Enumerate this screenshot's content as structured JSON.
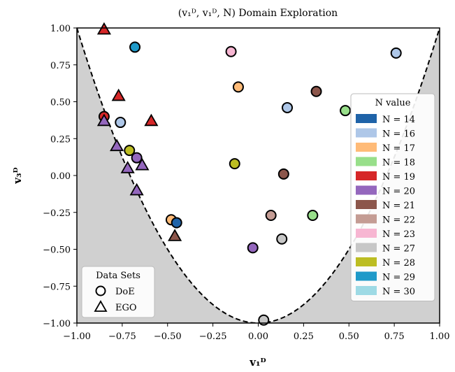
{
  "chart_data": {
    "type": "scatter",
    "title": "(v₁ᴰ, v₁ᴰ, N) Domain Exploration",
    "xlabel": "v₁ᴰ",
    "ylabel": "v₃ᴰ",
    "xlim": [
      -1.0,
      1.0
    ],
    "ylim": [
      -1.0,
      1.0
    ],
    "x_ticks": [
      "−1.00",
      "−0.75",
      "−0.50",
      "−0.25",
      "0.00",
      "0.25",
      "0.50",
      "0.75",
      "1.00"
    ],
    "y_ticks": [
      "1.00",
      "0.75",
      "0.50",
      "0.25",
      "0.00",
      "−0.25",
      "−0.50",
      "−0.75",
      "−1.00"
    ],
    "x_tick_values": [
      -1.0,
      -0.75,
      -0.5,
      -0.25,
      0.0,
      0.25,
      0.5,
      0.75,
      1.0
    ],
    "y_tick_values": [
      1.0,
      0.75,
      0.5,
      0.25,
      0.0,
      -0.25,
      -0.5,
      -0.75,
      -1.0
    ],
    "grid": false,
    "boundary": {
      "style": "dashed",
      "shape": "parabola",
      "vertex": [
        0.0,
        -1.0
      ],
      "shading": "grey outside curve"
    },
    "color_legend": {
      "title": "N value",
      "placement": "right",
      "entries": [
        {
          "label": "N = 14",
          "color": "#1f63a8"
        },
        {
          "label": "N = 16",
          "color": "#aec7e8"
        },
        {
          "label": "N = 17",
          "color": "#ffbb78"
        },
        {
          "label": "N = 18",
          "color": "#98df8a"
        },
        {
          "label": "N = 19",
          "color": "#d62728"
        },
        {
          "label": "N = 20",
          "color": "#9467bd"
        },
        {
          "label": "N = 21",
          "color": "#8c564b"
        },
        {
          "label": "N = 22",
          "color": "#c49c94"
        },
        {
          "label": "N = 23",
          "color": "#f7b6d2"
        },
        {
          "label": "N = 27",
          "color": "#c7c7c7"
        },
        {
          "label": "N = 28",
          "color": "#bcbd22"
        },
        {
          "label": "N = 29",
          "color": "#1f9ac9"
        },
        {
          "label": "N = 30",
          "color": "#9edae5"
        }
      ]
    },
    "marker_legend": {
      "title": "Data Sets",
      "placement": "bottom-left",
      "entries": [
        {
          "label": "DoE",
          "marker": "circle"
        },
        {
          "label": "EGO",
          "marker": "triangle"
        }
      ]
    },
    "series": [
      {
        "name": "DoE",
        "marker": "circle",
        "points": [
          {
            "x": -0.68,
            "y": 0.87,
            "N": 29
          },
          {
            "x": -0.15,
            "y": 0.84,
            "N": 23
          },
          {
            "x": 0.76,
            "y": 0.83,
            "N": 16
          },
          {
            "x": -0.11,
            "y": 0.6,
            "N": 17
          },
          {
            "x": 0.32,
            "y": 0.57,
            "N": 21
          },
          {
            "x": 0.16,
            "y": 0.46,
            "N": 16
          },
          {
            "x": 0.48,
            "y": 0.44,
            "N": 18
          },
          {
            "x": -0.85,
            "y": 0.4,
            "N": 19
          },
          {
            "x": -0.76,
            "y": 0.36,
            "N": 16
          },
          {
            "x": -0.71,
            "y": 0.17,
            "N": 28
          },
          {
            "x": -0.67,
            "y": 0.12,
            "N": 20
          },
          {
            "x": -0.13,
            "y": 0.08,
            "N": 28
          },
          {
            "x": 0.14,
            "y": 0.01,
            "N": 21
          },
          {
            "x": 0.07,
            "y": -0.27,
            "N": 22
          },
          {
            "x": 0.3,
            "y": -0.27,
            "N": 18
          },
          {
            "x": -0.48,
            "y": -0.3,
            "N": 17
          },
          {
            "x": -0.45,
            "y": -0.32,
            "N": 14
          },
          {
            "x": 0.13,
            "y": -0.43,
            "N": 27
          },
          {
            "x": -0.03,
            "y": -0.49,
            "N": 20
          },
          {
            "x": 0.03,
            "y": -0.98,
            "N": 27
          }
        ]
      },
      {
        "name": "EGO",
        "marker": "triangle",
        "points": [
          {
            "x": -0.85,
            "y": 0.99,
            "N": 19
          },
          {
            "x": -0.77,
            "y": 0.54,
            "N": 19
          },
          {
            "x": -0.59,
            "y": 0.37,
            "N": 19
          },
          {
            "x": -0.85,
            "y": 0.37,
            "N": 20
          },
          {
            "x": -0.78,
            "y": 0.2,
            "N": 20
          },
          {
            "x": -0.64,
            "y": 0.07,
            "N": 20
          },
          {
            "x": -0.72,
            "y": 0.05,
            "N": 20
          },
          {
            "x": -0.67,
            "y": -0.1,
            "N": 20
          },
          {
            "x": -0.46,
            "y": -0.41,
            "N": 21
          }
        ]
      }
    ]
  }
}
